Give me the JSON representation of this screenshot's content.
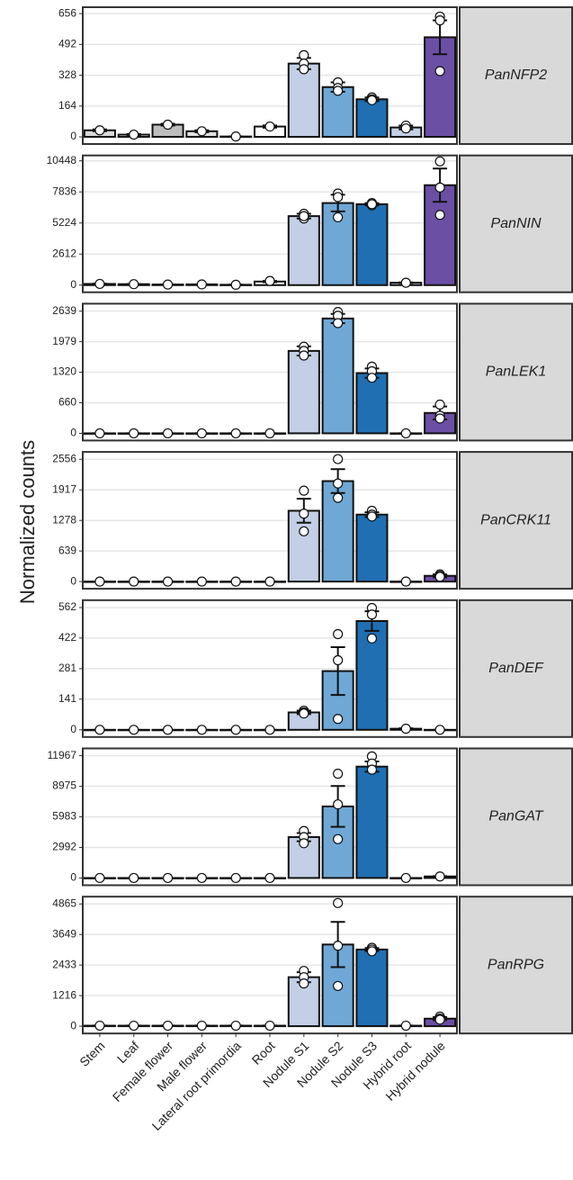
{
  "ylabel": "Normalized counts",
  "categories": [
    "Stem",
    "Leaf",
    "Female flower",
    "Male flower",
    "Lateral root primordia",
    "Root",
    "Nodule S1",
    "Nodule S2",
    "Nodule S3",
    "Hybrid root",
    "Hybrid nodule"
  ],
  "colors": [
    "#d9d9d9",
    "#ffffff",
    "#bdbdbd",
    "#e0e0e0",
    "#ffffff",
    "#ffffff",
    "#c3cfe6",
    "#6fa8d6",
    "#1f6fb2",
    "#c3cfe6",
    "#6b4fa5"
  ],
  "chart_data": [
    {
      "type": "bar",
      "title": "PanNFP2",
      "ylim": [
        -38,
        690
      ],
      "yticks": [
        0,
        164,
        328,
        492,
        656
      ],
      "values": [
        35,
        12,
        65,
        30,
        2,
        55,
        390,
        265,
        200,
        50,
        530
      ],
      "errors": [
        5,
        3,
        5,
        5,
        1,
        6,
        30,
        25,
        10,
        10,
        90
      ],
      "points": [
        [
          35
        ],
        [
          12
        ],
        [
          65
        ],
        [
          30
        ],
        [
          2
        ],
        [
          55
        ],
        [
          435,
          390,
          360
        ],
        [
          290,
          260,
          245
        ],
        [
          210,
          200,
          195
        ],
        [
          60,
          45
        ],
        [
          640,
          620,
          350
        ]
      ]
    },
    {
      "type": "bar",
      "title": "PanNIN",
      "ylim": [
        -600,
        10900
      ],
      "yticks": [
        0,
        2612,
        5224,
        7836,
        10448
      ],
      "values": [
        100,
        80,
        50,
        60,
        30,
        300,
        5800,
        6900,
        6800,
        200,
        8400
      ],
      "errors": [
        20,
        20,
        10,
        10,
        10,
        50,
        200,
        700,
        100,
        30,
        1400
      ],
      "points": [
        [
          100
        ],
        [
          80
        ],
        [
          50
        ],
        [
          60
        ],
        [
          30
        ],
        [
          350
        ],
        [
          6000,
          5600,
          5800
        ],
        [
          7700,
          7400,
          5700
        ],
        [
          6900,
          6700,
          6800
        ],
        [
          200
        ],
        [
          10400,
          8200,
          5900
        ]
      ]
    },
    {
      "type": "bar",
      "title": "PanLEK1",
      "ylim": [
        -155,
        2800
      ],
      "yticks": [
        0,
        660,
        1320,
        1979,
        2639
      ],
      "values": [
        0,
        0,
        0,
        0,
        0,
        0,
        1780,
        2480,
        1300,
        0,
        440
      ],
      "errors": [
        0,
        0,
        0,
        0,
        0,
        0,
        100,
        100,
        100,
        0,
        140
      ],
      "points": [
        [
          0
        ],
        [
          0
        ],
        [
          0
        ],
        [
          0
        ],
        [
          0
        ],
        [
          0
        ],
        [
          1870,
          1780,
          1680
        ],
        [
          2620,
          2540,
          2380
        ],
        [
          1440,
          1340,
          1200
        ],
        [
          0
        ],
        [
          620,
          380,
          320
        ]
      ]
    },
    {
      "type": "bar",
      "title": "PanCRK11",
      "ylim": [
        -150,
        2710
      ],
      "yticks": [
        0,
        639,
        1278,
        1917,
        2556
      ],
      "values": [
        0,
        0,
        0,
        0,
        0,
        0,
        1480,
        2100,
        1400,
        0,
        120
      ],
      "errors": [
        0,
        0,
        0,
        0,
        0,
        0,
        250,
        250,
        50,
        0,
        30
      ],
      "points": [
        [
          0
        ],
        [
          0
        ],
        [
          0
        ],
        [
          0
        ],
        [
          0
        ],
        [
          0
        ],
        [
          1900,
          1420,
          1050
        ],
        [
          2560,
          2050,
          1750
        ],
        [
          1480,
          1400,
          1360
        ],
        [
          0
        ],
        [
          150,
          120,
          100
        ]
      ]
    },
    {
      "type": "bar",
      "title": "PanDEF",
      "ylim": [
        -33,
        596
      ],
      "yticks": [
        0,
        141,
        281,
        422,
        562
      ],
      "values": [
        0,
        0,
        0,
        0,
        0,
        0,
        80,
        270,
        500,
        5,
        0
      ],
      "errors": [
        0,
        0,
        0,
        0,
        0,
        0,
        8,
        110,
        45,
        2,
        0
      ],
      "points": [
        [
          0
        ],
        [
          0
        ],
        [
          0
        ],
        [
          0
        ],
        [
          0
        ],
        [
          0
        ],
        [
          88,
          80,
          75
        ],
        [
          440,
          320,
          50
        ],
        [
          560,
          530,
          420
        ],
        [
          5
        ],
        [
          0
        ]
      ]
    },
    {
      "type": "bar",
      "title": "PanGAT",
      "ylim": [
        -710,
        12680
      ],
      "yticks": [
        0,
        2992,
        5983,
        8975,
        11967
      ],
      "values": [
        0,
        0,
        0,
        0,
        0,
        0,
        4000,
        7000,
        10900,
        0,
        150
      ],
      "errors": [
        0,
        0,
        0,
        0,
        0,
        0,
        400,
        2000,
        500,
        0,
        30
      ],
      "points": [
        [
          0
        ],
        [
          0
        ],
        [
          0
        ],
        [
          0
        ],
        [
          0
        ],
        [
          0
        ],
        [
          4600,
          4000,
          3400
        ],
        [
          10200,
          7200,
          3800
        ],
        [
          11900,
          11200,
          10600
        ],
        [
          0
        ],
        [
          150
        ]
      ]
    },
    {
      "type": "bar",
      "title": "PanRPG",
      "ylim": [
        -290,
        5155
      ],
      "yticks": [
        0,
        1216,
        2433,
        3649,
        4865
      ],
      "values": [
        20,
        20,
        20,
        20,
        20,
        20,
        1950,
        3250,
        3050,
        20,
        300
      ],
      "errors": [
        5,
        5,
        5,
        5,
        5,
        5,
        200,
        900,
        60,
        5,
        60
      ],
      "points": [
        [
          20
        ],
        [
          20
        ],
        [
          20
        ],
        [
          20
        ],
        [
          20
        ],
        [
          20
        ],
        [
          2200,
          1950,
          1700
        ],
        [
          4900,
          3200,
          1600
        ],
        [
          3120,
          3050,
          2980
        ],
        [
          20
        ],
        [
          380,
          300,
          260
        ]
      ]
    }
  ]
}
